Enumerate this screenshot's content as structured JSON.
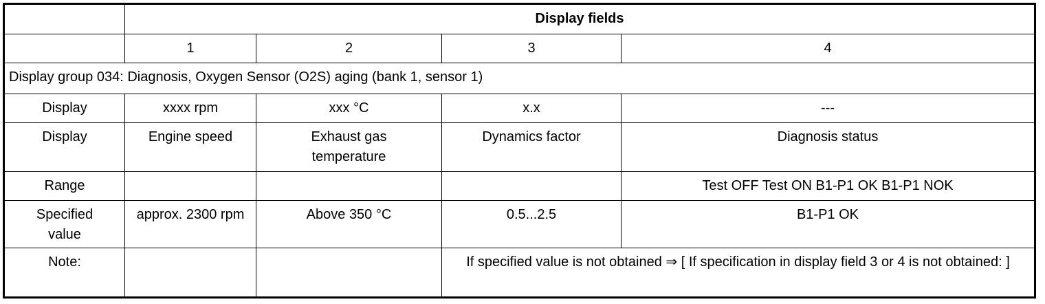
{
  "header": {
    "title": "Display fields",
    "fields": [
      "1",
      "2",
      "3",
      "4"
    ]
  },
  "group": "Display group 034: Diagnosis, Oxygen Sensor (O2S) aging (bank 1, sensor 1)",
  "rows": {
    "display_value": [
      "Display",
      "xxxx rpm",
      "xxx °C",
      "x.x",
      "---"
    ],
    "display_name": [
      "Display",
      "Engine speed",
      "Exhaust gas temperature",
      "Dynamics factor",
      "Diagnosis status"
    ],
    "range": [
      "Range",
      "Test OFF Test ON B1-P1 OK B1-P1 NOK"
    ],
    "specified": [
      "Specified value",
      "approx. 2300 rpm",
      "Above 350 °C",
      "0.5...2.5",
      "B1-P1 OK"
    ],
    "note": [
      "Note:",
      "If specified value is not obtained ⇒ [ If specification in display field 3 or 4 is not obtained: ]"
    ]
  }
}
